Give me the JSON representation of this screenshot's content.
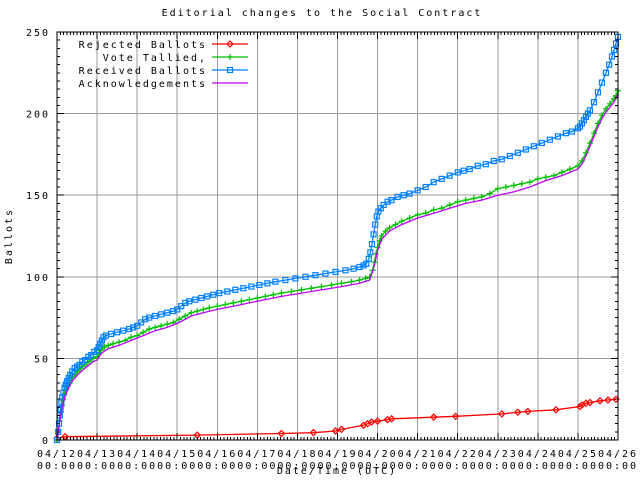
{
  "colors": {
    "background": "#ffffff",
    "grid": "#9b9b9b",
    "axis": "#000000",
    "text": "#000000"
  },
  "chart_data": {
    "type": "line",
    "title": "Editorial changes to the Social Contract",
    "xlabel": "Date/Time (UTC)",
    "ylabel": "Ballots",
    "xlim": [
      0,
      14
    ],
    "ylim": [
      0,
      250
    ],
    "y_ticks": [
      0,
      50,
      100,
      150,
      200,
      250
    ],
    "x_ticks": [
      {
        "date": "04/12",
        "time": "00:00"
      },
      {
        "date": "04/13",
        "time": "00:00"
      },
      {
        "date": "04/14",
        "time": "00:00"
      },
      {
        "date": "04/15",
        "time": "00:00"
      },
      {
        "date": "04/16",
        "time": "00:00"
      },
      {
        "date": "04/17",
        "time": "00:00"
      },
      {
        "date": "04/18",
        "time": "00:00"
      },
      {
        "date": "04/19",
        "time": "00:00"
      },
      {
        "date": "04/20",
        "time": "00:00"
      },
      {
        "date": "04/21",
        "time": "00:00"
      },
      {
        "date": "04/22",
        "time": "00:00"
      },
      {
        "date": "04/23",
        "time": "00:00"
      },
      {
        "date": "04/24",
        "time": "00:00"
      },
      {
        "date": "04/25",
        "time": "00:00"
      },
      {
        "date": "04/26",
        "time": "00:00"
      }
    ],
    "grid": true,
    "legend_position": "top-left",
    "x_unit": "days since 04/12 00:00 UTC",
    "series": [
      {
        "name": "Rejected Ballots",
        "color": "#ff0000",
        "marker": "diamond",
        "points": [
          [
            0,
            1
          ],
          [
            0.2,
            2
          ],
          [
            3.5,
            3
          ],
          [
            5.6,
            4
          ],
          [
            6.4,
            4.5
          ],
          [
            6.95,
            5.5
          ],
          [
            7.1,
            6.5
          ],
          [
            7.65,
            9
          ],
          [
            7.75,
            10
          ],
          [
            7.85,
            11
          ],
          [
            8.0,
            11.5
          ],
          [
            8.25,
            12.5
          ],
          [
            8.35,
            13
          ],
          [
            9.4,
            14
          ],
          [
            9.95,
            14.5
          ],
          [
            11.1,
            16
          ],
          [
            11.5,
            17
          ],
          [
            11.75,
            17.5
          ],
          [
            12.45,
            18.5
          ],
          [
            13.05,
            20.5
          ],
          [
            13.1,
            21.5
          ],
          [
            13.2,
            22.5
          ],
          [
            13.3,
            23
          ],
          [
            13.55,
            24
          ],
          [
            13.75,
            24.5
          ],
          [
            13.95,
            25
          ]
        ]
      },
      {
        "name": "Vote Tallied,",
        "color": "#00c000",
        "marker": "plus",
        "points": [
          [
            0,
            0
          ],
          [
            0.04,
            6
          ],
          [
            0.06,
            12
          ],
          [
            0.09,
            17
          ],
          [
            0.12,
            21
          ],
          [
            0.15,
            25
          ],
          [
            0.19,
            28
          ],
          [
            0.23,
            31
          ],
          [
            0.27,
            33
          ],
          [
            0.32,
            35
          ],
          [
            0.38,
            38
          ],
          [
            0.45,
            40
          ],
          [
            0.52,
            42
          ],
          [
            0.6,
            44
          ],
          [
            0.7,
            46
          ],
          [
            0.8,
            48
          ],
          [
            0.9,
            50
          ],
          [
            1.0,
            51
          ],
          [
            1.05,
            53
          ],
          [
            1.1,
            55
          ],
          [
            1.18,
            57
          ],
          [
            1.28,
            58
          ],
          [
            1.4,
            59
          ],
          [
            1.55,
            60
          ],
          [
            1.7,
            61
          ],
          [
            1.85,
            63
          ],
          [
            2.0,
            64
          ],
          [
            2.15,
            66
          ],
          [
            2.3,
            68
          ],
          [
            2.45,
            69
          ],
          [
            2.6,
            70
          ],
          [
            2.75,
            71
          ],
          [
            2.9,
            72
          ],
          [
            3.05,
            74
          ],
          [
            3.2,
            76
          ],
          [
            3.35,
            78
          ],
          [
            3.5,
            79
          ],
          [
            3.65,
            80
          ],
          [
            3.8,
            81
          ],
          [
            4.0,
            82
          ],
          [
            4.2,
            83
          ],
          [
            4.4,
            84
          ],
          [
            4.6,
            85
          ],
          [
            4.8,
            86
          ],
          [
            5.0,
            87
          ],
          [
            5.2,
            88
          ],
          [
            5.4,
            89
          ],
          [
            5.6,
            90
          ],
          [
            5.85,
            91
          ],
          [
            6.1,
            92
          ],
          [
            6.35,
            93
          ],
          [
            6.6,
            94
          ],
          [
            6.85,
            95
          ],
          [
            7.1,
            96
          ],
          [
            7.35,
            97
          ],
          [
            7.55,
            98
          ],
          [
            7.7,
            99
          ],
          [
            7.8,
            100
          ],
          [
            7.88,
            104
          ],
          [
            7.92,
            109
          ],
          [
            7.96,
            114
          ],
          [
            8.0,
            118
          ],
          [
            8.05,
            122
          ],
          [
            8.1,
            125
          ],
          [
            8.2,
            128
          ],
          [
            8.3,
            130
          ],
          [
            8.45,
            132
          ],
          [
            8.6,
            134
          ],
          [
            8.8,
            136
          ],
          [
            9.0,
            138
          ],
          [
            9.2,
            139
          ],
          [
            9.4,
            141
          ],
          [
            9.6,
            142
          ],
          [
            9.8,
            144
          ],
          [
            10.0,
            146
          ],
          [
            10.2,
            147
          ],
          [
            10.4,
            148
          ],
          [
            10.6,
            149
          ],
          [
            10.8,
            151
          ],
          [
            11.0,
            154
          ],
          [
            11.2,
            155
          ],
          [
            11.4,
            156
          ],
          [
            11.6,
            157
          ],
          [
            11.8,
            158
          ],
          [
            12.0,
            160
          ],
          [
            12.2,
            161
          ],
          [
            12.4,
            162
          ],
          [
            12.6,
            164
          ],
          [
            12.8,
            166
          ],
          [
            13.0,
            168
          ],
          [
            13.1,
            171
          ],
          [
            13.2,
            176
          ],
          [
            13.3,
            182
          ],
          [
            13.4,
            188
          ],
          [
            13.5,
            194
          ],
          [
            13.6,
            199
          ],
          [
            13.7,
            203
          ],
          [
            13.8,
            206
          ],
          [
            13.9,
            209
          ],
          [
            13.95,
            211
          ],
          [
            14,
            214
          ]
        ]
      },
      {
        "name": "Received Ballots",
        "color": "#0080ff",
        "marker": "square",
        "points": [
          [
            0,
            0
          ],
          [
            0.03,
            5
          ],
          [
            0.05,
            10
          ],
          [
            0.07,
            15
          ],
          [
            0.09,
            19
          ],
          [
            0.11,
            23
          ],
          [
            0.13,
            26
          ],
          [
            0.16,
            29
          ],
          [
            0.19,
            32
          ],
          [
            0.22,
            34
          ],
          [
            0.25,
            36
          ],
          [
            0.29,
            38
          ],
          [
            0.33,
            40
          ],
          [
            0.38,
            42
          ],
          [
            0.44,
            44
          ],
          [
            0.5,
            45
          ],
          [
            0.56,
            46
          ],
          [
            0.63,
            48
          ],
          [
            0.7,
            49
          ],
          [
            0.78,
            51
          ],
          [
            0.85,
            52
          ],
          [
            0.93,
            54
          ],
          [
            1.0,
            55
          ],
          [
            1.04,
            57
          ],
          [
            1.08,
            59
          ],
          [
            1.12,
            61
          ],
          [
            1.16,
            63
          ],
          [
            1.22,
            64
          ],
          [
            1.35,
            65
          ],
          [
            1.5,
            66
          ],
          [
            1.65,
            67
          ],
          [
            1.8,
            68
          ],
          [
            1.9,
            69
          ],
          [
            2.0,
            70
          ],
          [
            2.1,
            72
          ],
          [
            2.2,
            74
          ],
          [
            2.3,
            75
          ],
          [
            2.45,
            76
          ],
          [
            2.6,
            77
          ],
          [
            2.75,
            78
          ],
          [
            2.9,
            79
          ],
          [
            3.0,
            80
          ],
          [
            3.1,
            82
          ],
          [
            3.2,
            84
          ],
          [
            3.3,
            85
          ],
          [
            3.45,
            86
          ],
          [
            3.6,
            87
          ],
          [
            3.75,
            88
          ],
          [
            3.9,
            89
          ],
          [
            4.05,
            90
          ],
          [
            4.25,
            91
          ],
          [
            4.45,
            92
          ],
          [
            4.65,
            93
          ],
          [
            4.85,
            94
          ],
          [
            5.05,
            95
          ],
          [
            5.25,
            96
          ],
          [
            5.45,
            97
          ],
          [
            5.7,
            98
          ],
          [
            5.95,
            99
          ],
          [
            6.2,
            100
          ],
          [
            6.45,
            101
          ],
          [
            6.7,
            102
          ],
          [
            6.95,
            103
          ],
          [
            7.2,
            104
          ],
          [
            7.4,
            105
          ],
          [
            7.55,
            106
          ],
          [
            7.65,
            107
          ],
          [
            7.72,
            108
          ],
          [
            7.78,
            111
          ],
          [
            7.82,
            115
          ],
          [
            7.86,
            120
          ],
          [
            7.9,
            126
          ],
          [
            7.94,
            132
          ],
          [
            7.98,
            137
          ],
          [
            8.02,
            140
          ],
          [
            8.08,
            142
          ],
          [
            8.15,
            144
          ],
          [
            8.25,
            146
          ],
          [
            8.35,
            147
          ],
          [
            8.5,
            149
          ],
          [
            8.65,
            150
          ],
          [
            8.8,
            151
          ],
          [
            9.0,
            153
          ],
          [
            9.2,
            155
          ],
          [
            9.4,
            158
          ],
          [
            9.6,
            160
          ],
          [
            9.8,
            162
          ],
          [
            10.0,
            164
          ],
          [
            10.15,
            165
          ],
          [
            10.3,
            166
          ],
          [
            10.5,
            168
          ],
          [
            10.7,
            169
          ],
          [
            10.9,
            171
          ],
          [
            11.1,
            172
          ],
          [
            11.3,
            174
          ],
          [
            11.5,
            176
          ],
          [
            11.7,
            178
          ],
          [
            11.9,
            180
          ],
          [
            12.1,
            182
          ],
          [
            12.3,
            184
          ],
          [
            12.5,
            186
          ],
          [
            12.7,
            188
          ],
          [
            12.85,
            189
          ],
          [
            13.0,
            191
          ],
          [
            13.05,
            192
          ],
          [
            13.1,
            194
          ],
          [
            13.15,
            196
          ],
          [
            13.2,
            198
          ],
          [
            13.25,
            200
          ],
          [
            13.3,
            202
          ],
          [
            13.4,
            207
          ],
          [
            13.5,
            213
          ],
          [
            13.6,
            219
          ],
          [
            13.7,
            225
          ],
          [
            13.78,
            230
          ],
          [
            13.85,
            235
          ],
          [
            13.9,
            239
          ],
          [
            13.95,
            243
          ],
          [
            14,
            247
          ]
        ]
      },
      {
        "name": "Acknowledgements",
        "color": "#c000ff",
        "marker": "none",
        "points": [
          [
            0,
            0
          ],
          [
            0.06,
            10
          ],
          [
            0.12,
            19
          ],
          [
            0.19,
            26
          ],
          [
            0.27,
            31
          ],
          [
            0.38,
            36
          ],
          [
            0.52,
            40
          ],
          [
            0.7,
            44
          ],
          [
            0.9,
            48
          ],
          [
            1.0,
            49
          ],
          [
            1.1,
            53
          ],
          [
            1.28,
            56
          ],
          [
            1.55,
            58
          ],
          [
            1.85,
            61
          ],
          [
            2.15,
            64
          ],
          [
            2.45,
            67
          ],
          [
            2.75,
            69
          ],
          [
            3.05,
            72
          ],
          [
            3.35,
            76
          ],
          [
            3.65,
            78
          ],
          [
            4.0,
            80
          ],
          [
            4.4,
            82
          ],
          [
            4.8,
            84
          ],
          [
            5.2,
            86
          ],
          [
            5.6,
            88
          ],
          [
            6.1,
            90
          ],
          [
            6.6,
            92
          ],
          [
            7.1,
            94
          ],
          [
            7.55,
            96
          ],
          [
            7.8,
            98
          ],
          [
            7.92,
            107
          ],
          [
            8.0,
            116
          ],
          [
            8.1,
            123
          ],
          [
            8.3,
            128
          ],
          [
            8.6,
            132
          ],
          [
            9.0,
            136
          ],
          [
            9.4,
            139
          ],
          [
            9.8,
            142
          ],
          [
            10.2,
            145
          ],
          [
            10.6,
            147
          ],
          [
            11.0,
            150
          ],
          [
            11.4,
            152
          ],
          [
            11.8,
            155
          ],
          [
            12.2,
            159
          ],
          [
            12.6,
            162
          ],
          [
            13.0,
            166
          ],
          [
            13.1,
            169
          ],
          [
            13.2,
            174
          ],
          [
            13.3,
            180
          ],
          [
            13.4,
            186
          ],
          [
            13.5,
            192
          ],
          [
            13.6,
            197
          ],
          [
            13.7,
            201
          ],
          [
            13.8,
            204
          ],
          [
            13.9,
            207
          ],
          [
            14,
            212
          ]
        ]
      }
    ]
  }
}
